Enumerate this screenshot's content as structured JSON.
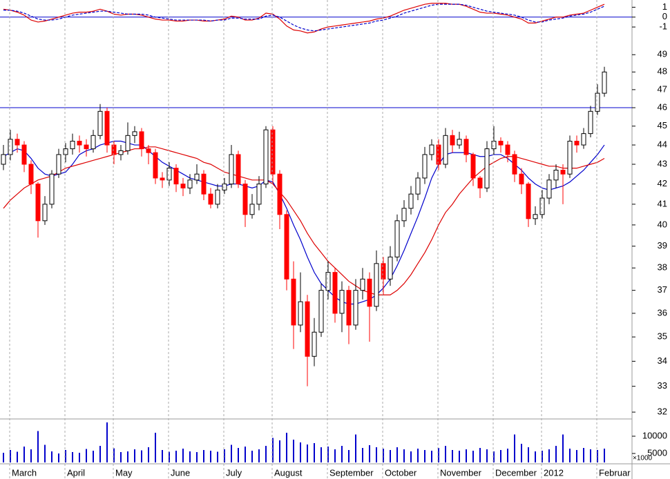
{
  "chart_data": [
    {
      "type": "line",
      "ylim": [
        -1.9,
        1.73
      ],
      "yticks": [
        -1,
        0,
        1
      ],
      "hlines": [
        0
      ],
      "hline_color": "#0000cc",
      "series": [
        {
          "color": "#dd0000",
          "dash": false,
          "values": [
            0.8,
            0.7,
            0.5,
            0.2,
            -0.3,
            -0.5,
            -0.4,
            -0.2,
            0.0,
            0.2,
            0.4,
            0.5,
            0.5,
            0.6,
            0.8,
            0.6,
            0.3,
            0.2,
            0.3,
            0.3,
            0.2,
            0.0,
            -0.2,
            -0.3,
            -0.3,
            -0.4,
            -0.4,
            -0.3,
            -0.3,
            -0.4,
            -0.4,
            -0.3,
            -0.2,
            0.1,
            0.0,
            -0.3,
            -0.3,
            -0.1,
            0.4,
            0.3,
            -0.2,
            -0.9,
            -1.3,
            -1.4,
            -1.6,
            -1.5,
            -1.2,
            -1.0,
            -0.9,
            -0.8,
            -0.7,
            -0.6,
            -0.5,
            -0.4,
            -0.2,
            -0.1,
            0.1,
            0.4,
            0.7,
            0.9,
            1.1,
            1.3,
            1.4,
            1.4,
            1.4,
            1.3,
            1.3,
            1.1,
            0.8,
            0.5,
            0.4,
            0.4,
            0.3,
            0.2,
            0.0,
            -0.2,
            -0.6,
            -0.6,
            -0.4,
            -0.2,
            0.0,
            0.0,
            0.2,
            0.3,
            0.4,
            0.7,
            1.0,
            1.3
          ]
        },
        {
          "color": "#0000cc",
          "dash": true,
          "values": [
            0.7,
            0.7,
            0.6,
            0.4,
            0.1,
            -0.2,
            -0.3,
            -0.3,
            -0.2,
            0.0,
            0.2,
            0.3,
            0.4,
            0.5,
            0.6,
            0.6,
            0.5,
            0.4,
            0.3,
            0.3,
            0.3,
            0.2,
            0.0,
            -0.1,
            -0.2,
            -0.3,
            -0.3,
            -0.3,
            -0.3,
            -0.3,
            -0.4,
            -0.3,
            -0.3,
            -0.1,
            -0.1,
            -0.2,
            -0.2,
            -0.2,
            0.1,
            0.2,
            0.0,
            -0.4,
            -0.8,
            -1.1,
            -1.3,
            -1.4,
            -1.3,
            -1.2,
            -1.1,
            -1.0,
            -0.9,
            -0.8,
            -0.7,
            -0.6,
            -0.4,
            -0.3,
            -0.1,
            0.1,
            0.4,
            0.6,
            0.8,
            1.0,
            1.2,
            1.3,
            1.3,
            1.3,
            1.3,
            1.2,
            1.0,
            0.8,
            0.6,
            0.5,
            0.4,
            0.3,
            0.2,
            0.0,
            -0.3,
            -0.5,
            -0.5,
            -0.3,
            -0.2,
            -0.1,
            0.1,
            0.2,
            0.3,
            0.5,
            0.8,
            1.1
          ]
        }
      ]
    },
    {
      "type": "candlestick",
      "log_scale": true,
      "ylim": [
        31.74,
        50.4
      ],
      "yticks": [
        32,
        33,
        34,
        35,
        36,
        37,
        38,
        39,
        40,
        41,
        42,
        43,
        44,
        45,
        46,
        47,
        48,
        49
      ],
      "hlines": [
        46
      ],
      "hline_color": "#0000cc",
      "up_color": "#000000",
      "down_color": "#ff0000",
      "open": [
        43.0,
        43.5,
        44.3,
        44.0,
        43.0,
        42.0,
        40.2,
        41.0,
        42.5,
        43.5,
        43.8,
        44.2,
        44.0,
        43.8,
        44.5,
        45.8,
        44.0,
        43.5,
        43.7,
        44.5,
        44.7,
        43.8,
        43.6,
        42.3,
        42.2,
        42.8,
        42.0,
        41.8,
        42.2,
        42.5,
        41.5,
        41.0,
        41.7,
        42.0,
        43.5,
        42.0,
        40.5,
        41.0,
        42.0,
        44.8,
        42.5,
        40.5,
        37.5,
        35.5,
        36.5,
        34.2,
        35.2,
        37.0,
        37.8,
        36.0,
        37.0,
        35.5,
        37.0,
        37.5,
        36.3,
        38.2,
        37.5,
        38.5,
        40.2,
        40.8,
        41.5,
        42.3,
        43.5,
        44.0,
        43.0,
        44.5,
        44.0,
        44.3,
        43.5,
        42.3,
        41.8,
        43.8,
        44.2,
        44.0,
        43.5,
        42.5,
        42.0,
        40.3,
        40.5,
        41.3,
        42.2,
        42.7,
        42.5,
        44.2,
        44.0,
        44.6,
        45.8,
        46.8
      ],
      "high": [
        44.0,
        44.8,
        44.6,
        44.2,
        43.2,
        42.1,
        41.4,
        42.7,
        43.8,
        44.1,
        44.6,
        44.5,
        44.3,
        44.8,
        46.2,
        46.0,
        44.2,
        44.0,
        45.2,
        45.0,
        44.9,
        44.0,
        43.8,
        42.6,
        43.1,
        43.0,
        42.3,
        42.5,
        43.0,
        42.7,
        41.8,
        42.0,
        42.3,
        44.0,
        43.7,
        42.2,
        41.5,
        42.4,
        45.0,
        45.0,
        42.7,
        40.7,
        38.3,
        37.8,
        36.8,
        35.8,
        37.3,
        38.3,
        38.0,
        37.4,
        37.2,
        37.5,
        38.0,
        37.8,
        38.8,
        38.5,
        39.0,
        40.5,
        41.2,
        41.9,
        42.6,
        43.9,
        44.3,
        44.3,
        44.9,
        44.8,
        44.7,
        44.5,
        43.6,
        42.4,
        44.2,
        45.0,
        44.4,
        44.2,
        43.7,
        42.8,
        42.1,
        40.9,
        41.7,
        42.5,
        43.0,
        43.0,
        44.5,
        44.5,
        44.9,
        46.1,
        47.3,
        48.3
      ],
      "low": [
        42.7,
        43.2,
        43.6,
        42.6,
        41.5,
        39.4,
        40.0,
        40.8,
        42.3,
        43.1,
        43.5,
        43.6,
        43.4,
        43.6,
        44.3,
        43.6,
        43.0,
        43.2,
        43.5,
        44.1,
        43.4,
        43.0,
        42.0,
        41.8,
        41.9,
        41.6,
        41.4,
        41.5,
        42.0,
        41.2,
        40.8,
        40.8,
        41.5,
        41.8,
        41.8,
        39.9,
        40.3,
        40.7,
        41.8,
        42.0,
        39.8,
        37.0,
        34.5,
        35.2,
        33.0,
        33.8,
        35.0,
        36.6,
        35.6,
        35.2,
        34.7,
        35.3,
        36.6,
        34.8,
        36.1,
        36.8,
        37.2,
        38.3,
        39.9,
        40.5,
        41.2,
        42.0,
        43.2,
        42.7,
        42.8,
        43.6,
        43.8,
        43.1,
        41.9,
        41.3,
        41.6,
        43.5,
        43.6,
        43.1,
        42.1,
        41.5,
        39.9,
        40.0,
        40.3,
        41.0,
        41.8,
        41.0,
        42.3,
        43.6,
        43.8,
        44.4,
        45.6,
        46.6
      ],
      "close": [
        43.5,
        44.3,
        44.0,
        43.0,
        42.0,
        40.2,
        41.0,
        42.5,
        43.5,
        43.8,
        44.2,
        44.0,
        43.8,
        44.5,
        45.8,
        44.0,
        43.5,
        43.7,
        44.5,
        44.7,
        43.8,
        43.6,
        42.3,
        42.2,
        42.8,
        42.0,
        41.8,
        42.2,
        42.5,
        41.5,
        41.0,
        41.7,
        42.0,
        43.5,
        42.0,
        40.5,
        41.0,
        42.0,
        44.8,
        42.5,
        40.5,
        37.5,
        35.5,
        36.5,
        34.2,
        35.2,
        37.0,
        37.8,
        36.0,
        37.0,
        35.5,
        37.0,
        37.5,
        36.3,
        38.2,
        37.5,
        38.5,
        40.2,
        40.8,
        41.5,
        42.3,
        43.5,
        44.0,
        43.0,
        44.5,
        44.0,
        44.3,
        43.5,
        42.3,
        41.8,
        43.8,
        44.2,
        44.0,
        43.5,
        42.5,
        42.0,
        40.3,
        40.5,
        41.3,
        42.2,
        42.7,
        42.5,
        44.2,
        44.0,
        44.6,
        45.8,
        46.8,
        48.0
      ],
      "series": [
        {
          "color": "#0000cc",
          "values": [
            43.4,
            43.6,
            43.8,
            43.7,
            43.3,
            42.8,
            42.5,
            42.4,
            42.5,
            42.6,
            43.0,
            43.5,
            43.7,
            43.8,
            44.0,
            44.1,
            44.2,
            44.2,
            44.1,
            44.0,
            44.0,
            43.7,
            43.4,
            43.1,
            42.9,
            42.7,
            42.5,
            42.3,
            42.2,
            42.1,
            42.0,
            41.9,
            41.9,
            42.0,
            42.0,
            41.9,
            41.8,
            41.9,
            42.2,
            42.1,
            41.5,
            40.8,
            40.0,
            39.3,
            38.5,
            37.8,
            37.3,
            37.0,
            36.7,
            36.5,
            36.4,
            36.4,
            36.5,
            36.6,
            36.8,
            37.1,
            37.5,
            38.1,
            38.8,
            39.6,
            40.4,
            41.3,
            42.3,
            43.0,
            43.5,
            43.6,
            43.6,
            43.6,
            43.5,
            43.4,
            43.4,
            43.5,
            43.5,
            43.3,
            43.0,
            42.7,
            42.3,
            42.0,
            41.8,
            41.7,
            41.8,
            41.9,
            42.1,
            42.4,
            42.7,
            43.1,
            43.5,
            44.0
          ]
        },
        {
          "color": "#dd0000",
          "values": [
            40.8,
            41.2,
            41.5,
            41.8,
            42.0,
            42.2,
            42.3,
            42.4,
            42.6,
            42.8,
            42.9,
            43.0,
            43.1,
            43.2,
            43.3,
            43.4,
            43.5,
            43.6,
            43.7,
            43.8,
            43.8,
            43.9,
            43.9,
            43.8,
            43.7,
            43.6,
            43.5,
            43.4,
            43.3,
            43.1,
            43.0,
            42.8,
            42.6,
            42.5,
            42.4,
            42.3,
            42.2,
            42.2,
            42.2,
            42.0,
            41.6,
            41.2,
            40.7,
            40.2,
            39.6,
            39.1,
            38.7,
            38.3,
            38.0,
            37.7,
            37.4,
            37.2,
            37.0,
            36.9,
            36.8,
            36.8,
            36.8,
            37.0,
            37.3,
            37.7,
            38.2,
            38.7,
            39.3,
            40.0,
            40.6,
            41.0,
            41.5,
            41.9,
            42.3,
            42.6,
            42.9,
            43.1,
            43.3,
            43.4,
            43.4,
            43.3,
            43.2,
            43.1,
            43.0,
            42.9,
            42.9,
            42.8,
            42.8,
            42.8,
            42.9,
            43.0,
            43.1,
            43.3
          ]
        }
      ]
    },
    {
      "type": "bar",
      "ylim": [
        2400,
        14600
      ],
      "yticks": [
        5000,
        10000
      ],
      "unit_label": "×1000",
      "color": "#0000cc",
      "categories": [
        null,
        "March",
        null,
        null,
        null,
        null,
        null,
        null,
        null,
        "April",
        null,
        null,
        null,
        null,
        null,
        null,
        "May",
        null,
        null,
        null,
        null,
        null,
        null,
        null,
        "June",
        null,
        null,
        null,
        null,
        null,
        null,
        null,
        "July",
        null,
        null,
        null,
        null,
        null,
        null,
        "August",
        null,
        null,
        null,
        null,
        null,
        null,
        null,
        "September",
        null,
        null,
        null,
        null,
        null,
        null,
        null,
        "October",
        null,
        null,
        null,
        null,
        null,
        null,
        null,
        "November",
        null,
        null,
        null,
        null,
        null,
        null,
        null,
        "December",
        null,
        null,
        null,
        null,
        null,
        null,
        "2012",
        null,
        null,
        null,
        null,
        null,
        null,
        null,
        "Februar",
        null
      ],
      "values": [
        5200,
        6000,
        5500,
        7000,
        6200,
        11500,
        7500,
        5600,
        5000,
        6000,
        5400,
        5200,
        6300,
        5800,
        7200,
        14000,
        6500,
        5400,
        5600,
        6200,
        5900,
        6800,
        11000,
        6000,
        5500,
        5800,
        6400,
        5600,
        5400,
        6000,
        5800,
        5500,
        6200,
        7500,
        6600,
        7000,
        5800,
        6200,
        7200,
        9500,
        8800,
        11000,
        9000,
        8200,
        7600,
        8000,
        6800,
        7000,
        6200,
        7200,
        6000,
        10500,
        6600,
        7400,
        6800,
        6400,
        6000,
        6800,
        6200,
        5600,
        6400,
        6000,
        5800,
        6600,
        7200,
        6000,
        5800,
        6200,
        5800,
        6600,
        6200,
        5600,
        6000,
        6400,
        10500,
        7800,
        6800,
        5600,
        5800,
        6200,
        7200,
        10500,
        6400,
        6000,
        6600,
        6200,
        6000,
        6400
      ]
    }
  ]
}
